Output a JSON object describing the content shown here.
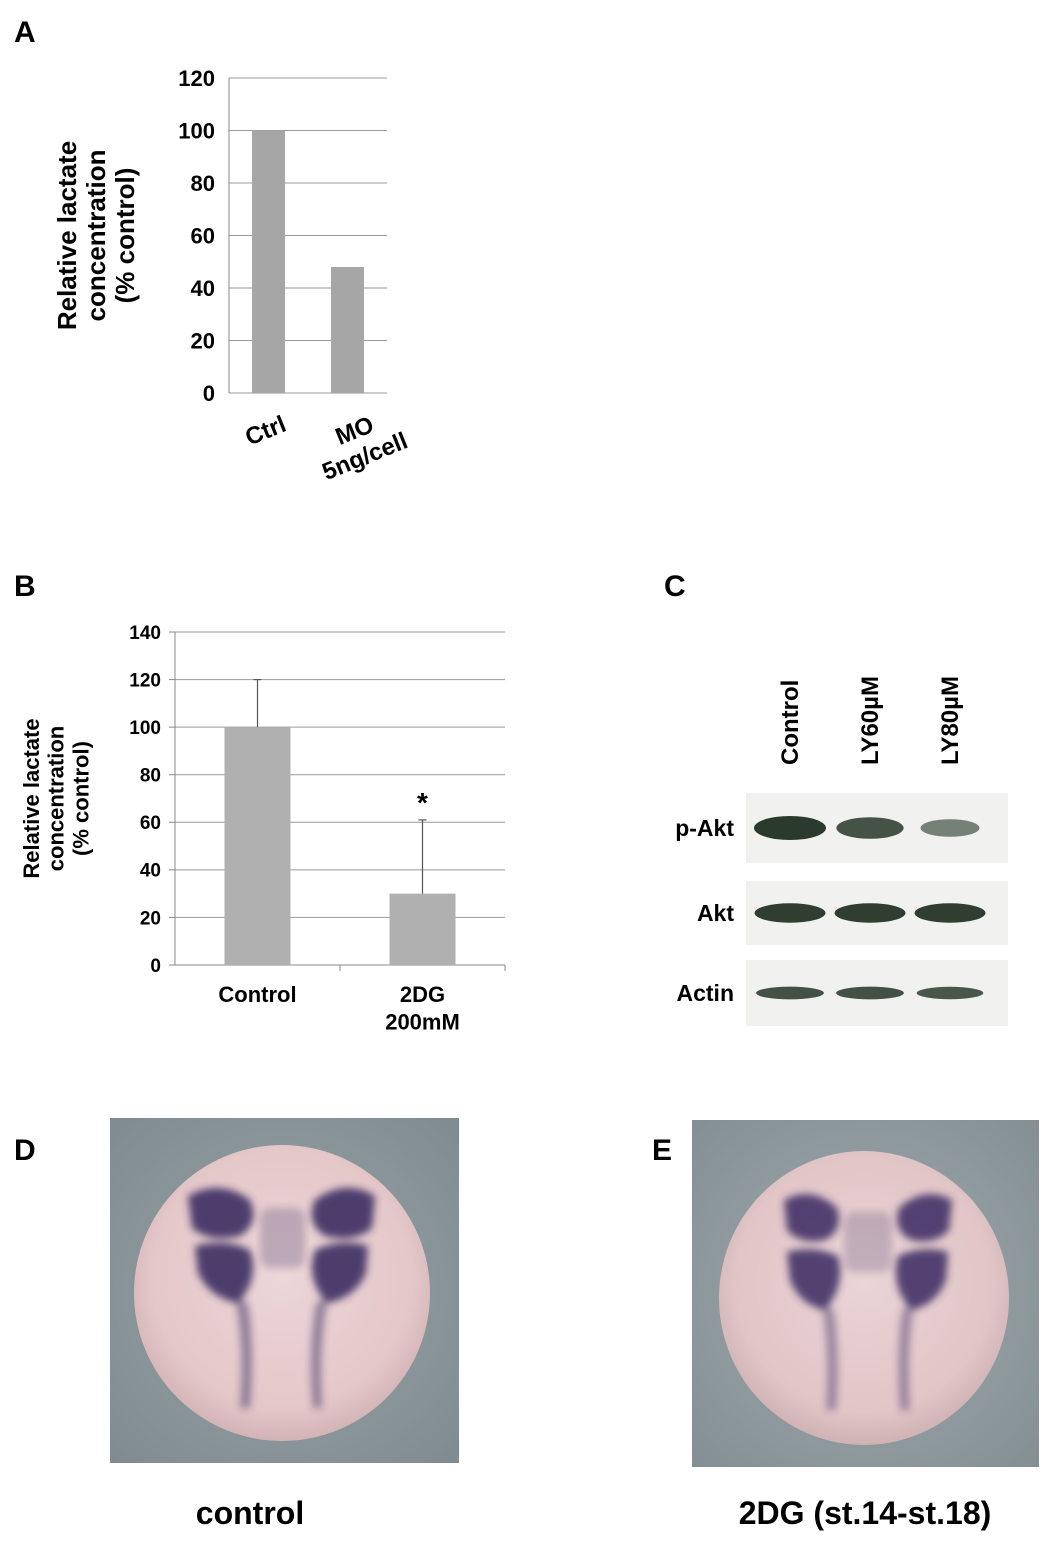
{
  "panels": {
    "a": "A",
    "b": "B",
    "c": "C",
    "d": "D",
    "e": "E"
  },
  "chart_data": [
    {
      "type": "bar",
      "panel": "A",
      "categories": [
        "Ctrl",
        "MO 5ng/cell"
      ],
      "category_lines": [
        [
          "Ctrl"
        ],
        [
          "MO",
          "5ng/cell"
        ]
      ],
      "values": [
        100,
        48
      ],
      "ylabel_lines": [
        "Relative lactate",
        "concentration",
        "(% control)"
      ],
      "ylim": [
        0,
        120
      ],
      "yticks": [
        0,
        20,
        40,
        60,
        80,
        100,
        120
      ],
      "grid": true,
      "bar_color": "#a6a6a6"
    },
    {
      "type": "bar",
      "panel": "B",
      "categories": [
        "Control",
        "2DG 200mM"
      ],
      "category_lines": [
        [
          "Control"
        ],
        [
          "2DG",
          "200mM"
        ]
      ],
      "values": [
        100,
        30
      ],
      "error_upper": [
        120,
        61
      ],
      "annotations": [
        "",
        "*"
      ],
      "ylabel_lines": [
        "Relative lactate",
        "concentration",
        "(% control)"
      ],
      "ylim": [
        0,
        140
      ],
      "yticks": [
        0,
        20,
        40,
        60,
        80,
        100,
        120,
        140
      ],
      "grid": true,
      "bar_color": "#b0b0b0"
    }
  ],
  "blot": {
    "lanes": [
      "Control",
      "LY60µM",
      "LY80µM"
    ],
    "rows": [
      {
        "label": "p-Akt",
        "intensity": [
          1.0,
          0.78,
          0.4
        ]
      },
      {
        "label": "Akt",
        "intensity": [
          0.95,
          0.95,
          0.95
        ]
      },
      {
        "label": "Actin",
        "intensity": [
          0.8,
          0.8,
          0.75
        ]
      }
    ]
  },
  "embryos": {
    "d_caption": "control",
    "e_caption": "2DG (st.14-st.18)"
  }
}
